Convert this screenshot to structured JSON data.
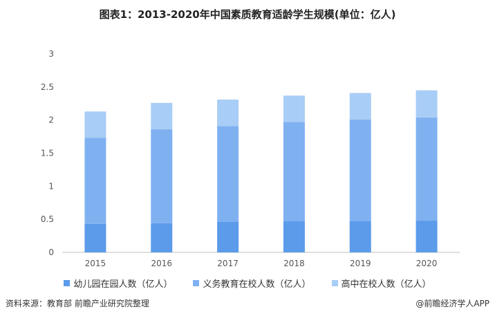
{
  "colors": {
    "kindergarten": "#5b9bea",
    "compulsory": "#7fb1f1",
    "highschool": "#a8cdf6",
    "axis": "#bfbfbf"
  },
  "chart_data": {
    "type": "bar",
    "stacked": true,
    "title": "图表1：2013-2020年中国素质教育适龄学生规模(单位：亿人)",
    "categories": [
      "2015",
      "2016",
      "2017",
      "2018",
      "2019",
      "2020"
    ],
    "series": [
      {
        "name": "幼儿园在园人数（亿人）",
        "values": [
          0.43,
          0.44,
          0.46,
          0.47,
          0.47,
          0.48
        ]
      },
      {
        "name": "义务教育在校人数（亿人）",
        "values": [
          1.3,
          1.42,
          1.45,
          1.5,
          1.54,
          1.56
        ]
      },
      {
        "name": "高中在校人数（亿人）",
        "values": [
          0.4,
          0.4,
          0.4,
          0.4,
          0.4,
          0.41
        ]
      }
    ],
    "ylim": [
      0,
      3
    ],
    "yticks": [
      "0",
      "0.5",
      "1",
      "1.5",
      "2",
      "2.5",
      "3"
    ],
    "legend_position": "bottom",
    "grid": false
  },
  "footer": {
    "source": "资料来源：教育部 前瞻产业研究院整理",
    "brand": "@前瞻经济学人APP"
  }
}
